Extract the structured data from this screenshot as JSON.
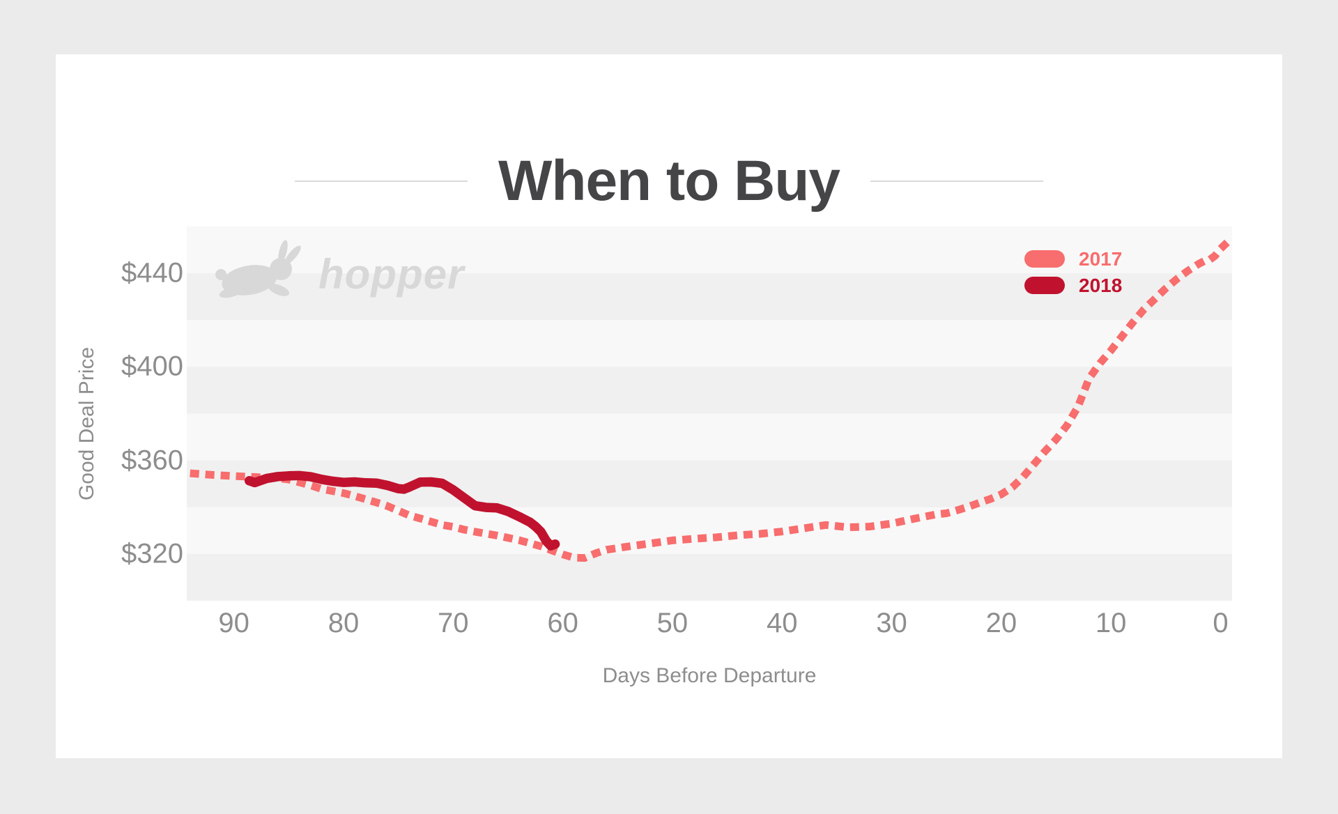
{
  "title": "When to Buy",
  "watermark": {
    "brand": "hopper"
  },
  "colors": {
    "page_background": "#EBEBEB",
    "card_background": "#FFFFFF",
    "band_light": "#F8F8F8",
    "band_dark": "#F0F0F0",
    "title_text": "#454547",
    "axis_text": "#8D8D8D",
    "title_rule": "#DBDBDB",
    "watermark_gray": "#D8D8D8",
    "series_2017": "#F86D6D",
    "series_2018": "#C0122E"
  },
  "chart_data": {
    "type": "line",
    "title": "When to Buy",
    "xlabel": "Days Before Departure",
    "ylabel": "Good Deal Price",
    "x_ticks": [
      90,
      80,
      70,
      60,
      50,
      40,
      30,
      20,
      10,
      0
    ],
    "x_tick_suffix": "",
    "x_range_days": [
      94.3,
      -1.05
    ],
    "x_axis_direction": "days counting down to departure, left to right",
    "y_ticks": [
      440,
      400,
      360,
      320
    ],
    "y_tick_prefix": "$",
    "ylim": [
      300,
      460
    ],
    "band_step": 20,
    "grid_bands": "alternating horizontal $20 stripes",
    "legend_position": "top-right",
    "legend": [
      "2017",
      "2018"
    ],
    "series": [
      {
        "name": "2017",
        "color": "#F86D6D",
        "line_style": "dashed",
        "points": [
          [
            94,
            354.5
          ],
          [
            92,
            353.8
          ],
          [
            90,
            353.3
          ],
          [
            88,
            352.9
          ],
          [
            86,
            352.4
          ],
          [
            85,
            351.8
          ],
          [
            84,
            350.6
          ],
          [
            83,
            349.3
          ],
          [
            82,
            347.8
          ],
          [
            81,
            346.9
          ],
          [
            80,
            346
          ],
          [
            79,
            344.8
          ],
          [
            78,
            343.4
          ],
          [
            77,
            342
          ],
          [
            76,
            340.5
          ],
          [
            75,
            338.5
          ],
          [
            74,
            336.5
          ],
          [
            73,
            335.2
          ],
          [
            72,
            333.8
          ],
          [
            71,
            332.4
          ],
          [
            70,
            331.6
          ],
          [
            69,
            330.4
          ],
          [
            68,
            329.5
          ],
          [
            66,
            327.9
          ],
          [
            64,
            325.9
          ],
          [
            62,
            323.3
          ],
          [
            61,
            321.5
          ],
          [
            60,
            319.8
          ],
          [
            59,
            318.4
          ],
          [
            58,
            318.3
          ],
          [
            57,
            320.3
          ],
          [
            56,
            321.8
          ],
          [
            54,
            323.2
          ],
          [
            52,
            324.5
          ],
          [
            50,
            325.8
          ],
          [
            48,
            326.5
          ],
          [
            46,
            327.1
          ],
          [
            44,
            328
          ],
          [
            42,
            328.6
          ],
          [
            40,
            329.6
          ],
          [
            38,
            331
          ],
          [
            36,
            332.4
          ],
          [
            35,
            331.9
          ],
          [
            34,
            331.4
          ],
          [
            32,
            331.7
          ],
          [
            30,
            333
          ],
          [
            28,
            335
          ],
          [
            26,
            336.9
          ],
          [
            25,
            337.4
          ],
          [
            24,
            338.7
          ],
          [
            23,
            340.2
          ],
          [
            22,
            341.9
          ],
          [
            21,
            343.5
          ],
          [
            20,
            345.5
          ],
          [
            19,
            348.5
          ],
          [
            18,
            353
          ],
          [
            17,
            358.5
          ],
          [
            16,
            364
          ],
          [
            15,
            369
          ],
          [
            14,
            375
          ],
          [
            13,
            383
          ],
          [
            12,
            395
          ],
          [
            11,
            401.5
          ],
          [
            10,
            407
          ],
          [
            9,
            413
          ],
          [
            8,
            419
          ],
          [
            7,
            424.5
          ],
          [
            6,
            429
          ],
          [
            5,
            433.5
          ],
          [
            4,
            437.5
          ],
          [
            3,
            441
          ],
          [
            2,
            444
          ],
          [
            1.5,
            445.2
          ],
          [
            1,
            445.8
          ],
          [
            0.5,
            447.5
          ],
          [
            0,
            450.5
          ],
          [
            -1,
            455
          ]
        ]
      },
      {
        "name": "2018",
        "color": "#C0122E",
        "line_style": "solid",
        "points": [
          [
            88.6,
            351.3
          ],
          [
            88.1,
            350.5
          ],
          [
            87,
            352.3
          ],
          [
            86,
            353.1
          ],
          [
            85,
            353.4
          ],
          [
            84,
            353.5
          ],
          [
            83,
            353
          ],
          [
            82,
            351.9
          ],
          [
            81,
            351.1
          ],
          [
            80,
            350.6
          ],
          [
            79,
            350.8
          ],
          [
            78,
            350.4
          ],
          [
            77,
            350.3
          ],
          [
            76,
            349.3
          ],
          [
            75,
            347.9
          ],
          [
            74.5,
            347.7
          ],
          [
            74,
            348.6
          ],
          [
            73,
            350.7
          ],
          [
            72,
            350.8
          ],
          [
            71,
            350.2
          ],
          [
            70,
            347.4
          ],
          [
            69,
            344
          ],
          [
            68,
            340.6
          ],
          [
            67,
            339.9
          ],
          [
            66,
            339.7
          ],
          [
            65,
            338.2
          ],
          [
            64,
            336
          ],
          [
            63,
            333.6
          ],
          [
            62.5,
            331.8
          ],
          [
            62,
            329.5
          ],
          [
            61.5,
            325.5
          ],
          [
            61.1,
            323.5
          ],
          [
            60.7,
            324.2
          ]
        ]
      }
    ]
  }
}
